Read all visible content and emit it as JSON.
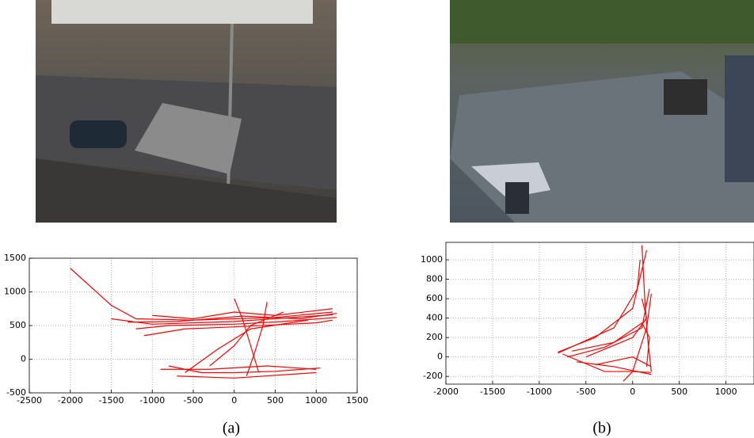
{
  "chart_data": [
    {
      "type": "line",
      "caption": "(a)",
      "color": "#ff0000",
      "grid": true,
      "xlim": [
        -2500,
        1500
      ],
      "ylim": [
        -500,
        1500
      ],
      "xticks": [
        -2500,
        -2000,
        -1500,
        -1000,
        -500,
        0,
        500,
        1000,
        1500
      ],
      "yticks": [
        -500,
        0,
        500,
        1000,
        1500
      ],
      "series": [
        {
          "x": [
            -2000,
            -1500,
            -1200,
            -500,
            0,
            500,
            1200
          ],
          "y": [
            1350,
            800,
            600,
            580,
            600,
            620,
            700
          ]
        },
        {
          "x": [
            -1200,
            -800,
            0,
            600,
            1250
          ],
          "y": [
            450,
            500,
            520,
            560,
            620
          ]
        },
        {
          "x": [
            -1000,
            -500,
            0,
            500,
            1200
          ],
          "y": [
            650,
            600,
            700,
            650,
            750
          ]
        },
        {
          "x": [
            -1100,
            -600,
            0,
            1000,
            1200
          ],
          "y": [
            350,
            450,
            480,
            540,
            580
          ]
        },
        {
          "x": [
            -800,
            -400,
            0,
            500,
            1050
          ],
          "y": [
            -100,
            -200,
            -200,
            -180,
            -130
          ]
        },
        {
          "x": [
            -700,
            0,
            1000
          ],
          "y": [
            -250,
            -280,
            -200
          ]
        },
        {
          "x": [
            0,
            100,
            200,
            300
          ],
          "y": [
            900,
            600,
            200,
            -200
          ]
        },
        {
          "x": [
            -300,
            0,
            200,
            600
          ],
          "y": [
            -100,
            200,
            500,
            700
          ]
        },
        {
          "x": [
            -900,
            -300,
            400,
            1000
          ],
          "y": [
            -150,
            -150,
            -100,
            -150
          ]
        },
        {
          "x": [
            -1500,
            -1000,
            0,
            1200
          ],
          "y": [
            600,
            520,
            560,
            660
          ]
        },
        {
          "x": [
            -1300,
            -700,
            100,
            800,
            1250
          ],
          "y": [
            550,
            560,
            640,
            600,
            680
          ]
        },
        {
          "x": [
            400,
            350,
            250,
            150
          ],
          "y": [
            850,
            500,
            100,
            -250
          ]
        },
        {
          "x": [
            -600,
            -200,
            200,
            900
          ],
          "y": [
            -200,
            150,
            450,
            580
          ]
        }
      ]
    },
    {
      "type": "line",
      "caption": "(b)",
      "color": "#ff0000",
      "grid": true,
      "xlim": [
        -2000,
        1300
      ],
      "ylim": [
        -280,
        1180
      ],
      "xticks": [
        -2000,
        -1500,
        -1000,
        -500,
        0,
        500,
        1000
      ],
      "yticks": [
        -200,
        0,
        200,
        400,
        600,
        800,
        1000
      ],
      "series": [
        {
          "x": [
            -800,
            -400,
            0,
            100,
            150
          ],
          "y": [
            50,
            200,
            500,
            900,
            1100
          ]
        },
        {
          "x": [
            -700,
            -300,
            100,
            180
          ],
          "y": [
            0,
            100,
            300,
            700
          ]
        },
        {
          "x": [
            -600,
            -200,
            200
          ],
          "y": [
            -50,
            -100,
            -180
          ]
        },
        {
          "x": [
            -750,
            -300,
            0,
            200
          ],
          "y": [
            30,
            -150,
            -150,
            -160
          ]
        },
        {
          "x": [
            -500,
            0,
            150,
            100
          ],
          "y": [
            0,
            200,
            400,
            600
          ]
        },
        {
          "x": [
            100,
            130,
            160,
            200
          ],
          "y": [
            1150,
            600,
            200,
            -150
          ]
        },
        {
          "x": [
            -800,
            -200,
            50,
            80
          ],
          "y": [
            40,
            300,
            700,
            1000
          ]
        },
        {
          "x": [
            -400,
            0,
            200
          ],
          "y": [
            -80,
            0,
            -100
          ]
        },
        {
          "x": [
            -100,
            0,
            150,
            200
          ],
          "y": [
            -250,
            -150,
            300,
            650
          ]
        },
        {
          "x": [
            -650,
            -200,
            100,
            180,
            150
          ],
          "y": [
            60,
            150,
            350,
            200,
            -100
          ]
        }
      ]
    }
  ]
}
